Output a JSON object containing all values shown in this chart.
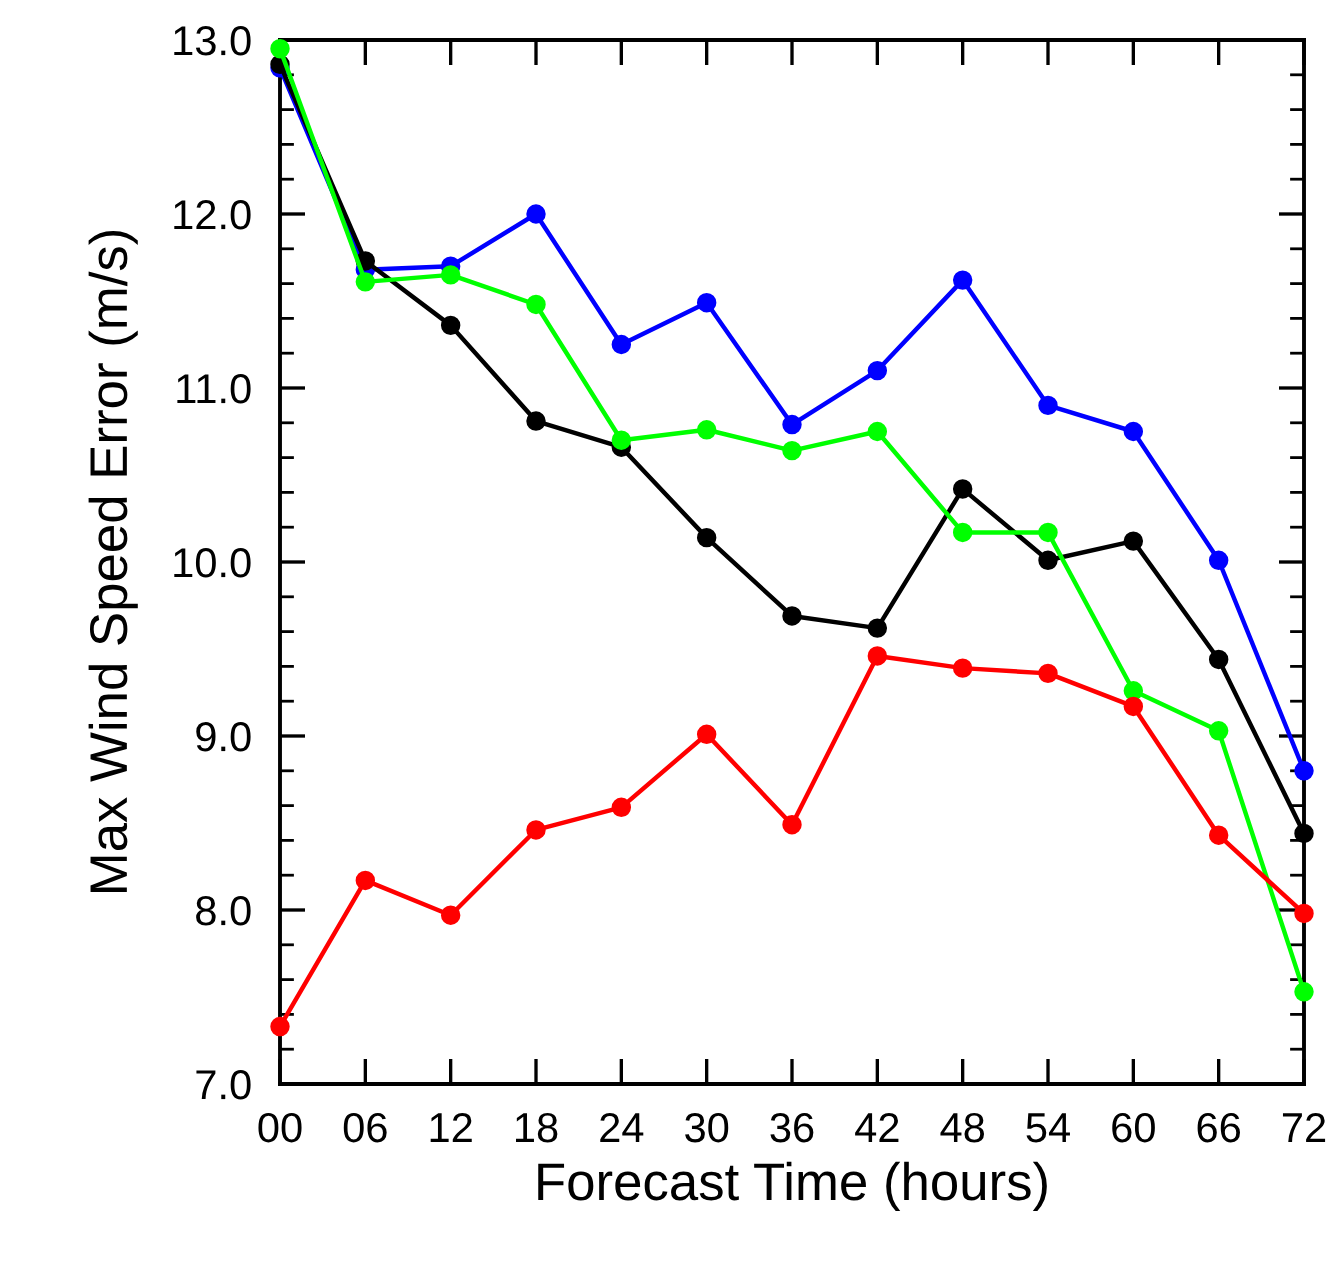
{
  "chart_data": {
    "type": "line",
    "xlabel": "Forecast Time (hours)",
    "ylabel": "Max Wind Speed Error (m/s)",
    "x": [
      0,
      6,
      12,
      18,
      24,
      30,
      36,
      42,
      48,
      54,
      60,
      66,
      72
    ],
    "series": [
      {
        "color": "#0000ff",
        "values": [
          12.84,
          11.68,
          11.7,
          12.0,
          11.25,
          11.49,
          10.79,
          11.1,
          11.62,
          10.9,
          10.75,
          10.01,
          8.8
        ]
      },
      {
        "color": "#000000",
        "values": [
          12.86,
          11.73,
          11.36,
          10.81,
          10.66,
          10.14,
          9.69,
          9.62,
          10.42,
          10.01,
          10.12,
          9.44,
          8.44
        ]
      },
      {
        "color": "#00ff00",
        "values": [
          12.95,
          11.61,
          11.65,
          11.48,
          10.7,
          10.76,
          10.64,
          10.75,
          10.17,
          10.17,
          9.26,
          9.03,
          7.53
        ]
      },
      {
        "color": "#ff0000",
        "values": [
          7.33,
          8.17,
          7.97,
          8.46,
          8.59,
          9.01,
          8.49,
          9.46,
          9.39,
          9.36,
          9.17,
          8.43,
          7.98
        ]
      }
    ],
    "xlim": [
      0,
      72
    ],
    "ylim": [
      7.0,
      13.0
    ],
    "xticks": [
      {
        "value": 0,
        "label": "00"
      },
      {
        "value": 6,
        "label": "06"
      },
      12,
      18,
      24,
      30,
      36,
      42,
      48,
      54,
      60,
      66,
      72
    ],
    "yticks": [
      {
        "value": 7,
        "label": "7.0"
      },
      {
        "value": 8,
        "label": "8.0"
      },
      {
        "value": 9,
        "label": "9.0"
      },
      {
        "value": 10,
        "label": "10.0"
      },
      {
        "value": 11,
        "label": "11.0"
      },
      {
        "value": 12,
        "label": "12.0"
      },
      {
        "value": 13,
        "label": "13.0"
      }
    ],
    "marker": "circle",
    "line_style": "solid",
    "grid": false,
    "legend": false
  }
}
